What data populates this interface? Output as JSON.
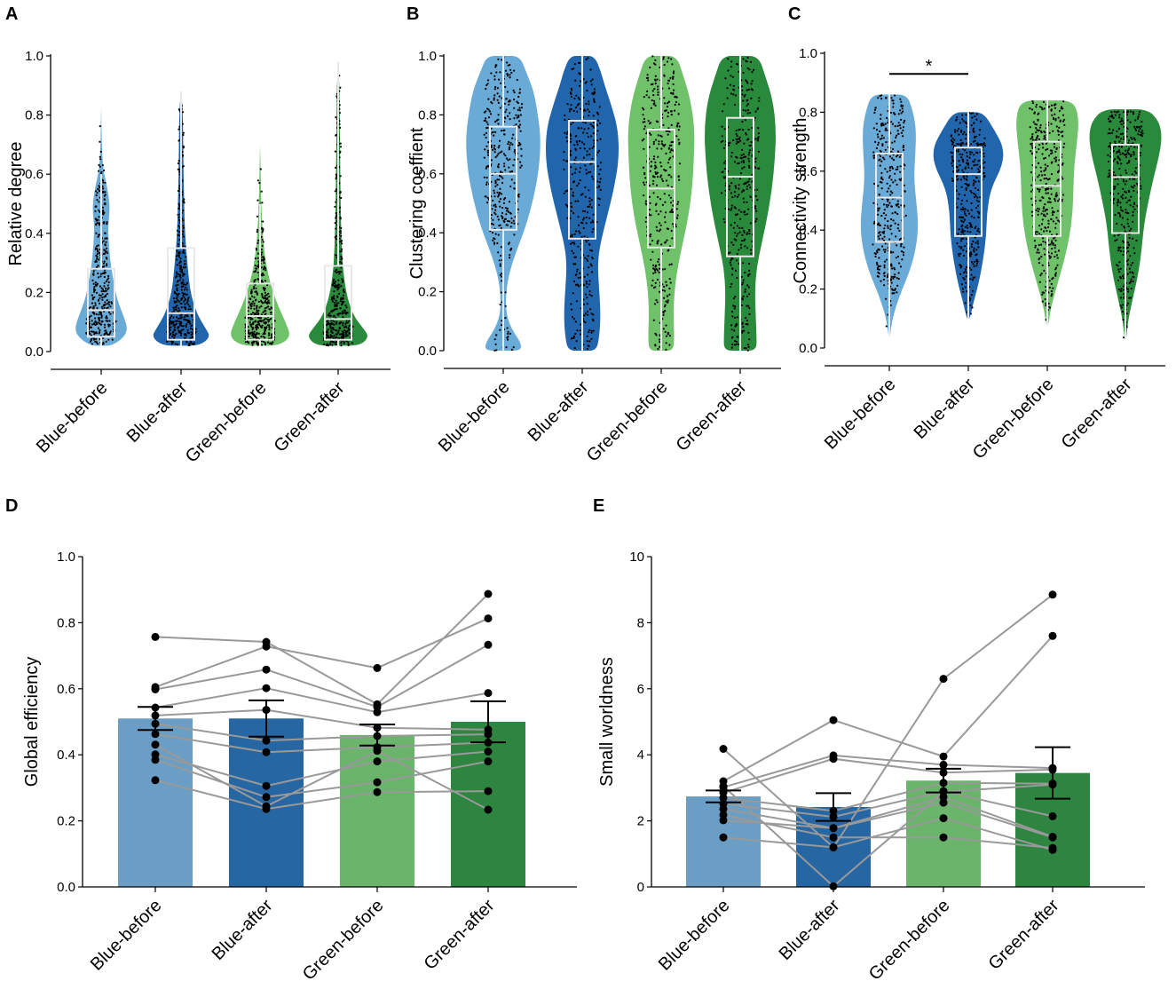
{
  "colors": {
    "Blue-before": "#6aaad6",
    "Blue-after": "#2166ac",
    "Green-before": "#6fc26a",
    "Green-after": "#2a8a3c",
    "bar_Blue-before": "#6a9ec4",
    "bar_Blue-after": "#2666a2",
    "bar_Green-before": "#6ab46c",
    "bar_Green-after": "#2e8540",
    "pair_line": "#999999",
    "point": "#000000"
  },
  "chart_data": [
    {
      "panel": "A",
      "type": "violin",
      "ylabel": "Relative degree",
      "ylim": [
        0,
        1.0
      ],
      "yticks": [
        "0.0",
        "0.2",
        "0.4",
        "0.6",
        "0.8",
        "1.0"
      ],
      "categories": [
        "Blue-before",
        "Blue-after",
        "Green-before",
        "Green-after"
      ],
      "groups": [
        {
          "name": "Blue-before",
          "min": 0.02,
          "max": 0.83,
          "q1": 0.05,
          "median": 0.14,
          "q3": 0.28,
          "whisker_low": 0.02,
          "whisker_high": 0.6,
          "density": [
            [
              0.02,
              0.35
            ],
            [
              0.05,
              0.75
            ],
            [
              0.08,
              0.85
            ],
            [
              0.12,
              0.72
            ],
            [
              0.18,
              0.5
            ],
            [
              0.25,
              0.38
            ],
            [
              0.3,
              0.3
            ],
            [
              0.36,
              0.25
            ],
            [
              0.42,
              0.22
            ],
            [
              0.48,
              0.28
            ],
            [
              0.53,
              0.24
            ],
            [
              0.58,
              0.14
            ],
            [
              0.62,
              0.06
            ],
            [
              0.7,
              0.02
            ],
            [
              0.83,
              0.0
            ]
          ]
        },
        {
          "name": "Blue-after",
          "min": 0.02,
          "max": 0.88,
          "q1": 0.04,
          "median": 0.13,
          "q3": 0.35,
          "whisker_low": 0.02,
          "whisker_high": 0.88,
          "density": [
            [
              0.02,
              0.6
            ],
            [
              0.05,
              0.95
            ],
            [
              0.08,
              0.78
            ],
            [
              0.13,
              0.5
            ],
            [
              0.2,
              0.3
            ],
            [
              0.28,
              0.22
            ],
            [
              0.35,
              0.16
            ],
            [
              0.42,
              0.12
            ],
            [
              0.5,
              0.1
            ],
            [
              0.6,
              0.08
            ],
            [
              0.7,
              0.07
            ],
            [
              0.78,
              0.06
            ],
            [
              0.84,
              0.04
            ],
            [
              0.88,
              0.0
            ]
          ]
        },
        {
          "name": "Green-before",
          "min": 0.02,
          "max": 0.7,
          "q1": 0.04,
          "median": 0.12,
          "q3": 0.23,
          "whisker_low": 0.02,
          "whisker_high": 0.5,
          "density": [
            [
              0.02,
              0.6
            ],
            [
              0.05,
              1.0
            ],
            [
              0.1,
              0.82
            ],
            [
              0.15,
              0.6
            ],
            [
              0.2,
              0.42
            ],
            [
              0.26,
              0.26
            ],
            [
              0.32,
              0.16
            ],
            [
              0.38,
              0.1
            ],
            [
              0.45,
              0.06
            ],
            [
              0.5,
              0.04
            ],
            [
              0.6,
              0.02
            ],
            [
              0.7,
              0.0
            ]
          ]
        },
        {
          "name": "Green-after",
          "min": 0.02,
          "max": 0.98,
          "q1": 0.04,
          "median": 0.11,
          "q3": 0.29,
          "whisker_low": 0.02,
          "whisker_high": 0.98,
          "density": [
            [
              0.02,
              0.7
            ],
            [
              0.05,
              1.0
            ],
            [
              0.08,
              0.8
            ],
            [
              0.12,
              0.5
            ],
            [
              0.18,
              0.3
            ],
            [
              0.24,
              0.2
            ],
            [
              0.3,
              0.14
            ],
            [
              0.4,
              0.1
            ],
            [
              0.5,
              0.08
            ],
            [
              0.6,
              0.07
            ],
            [
              0.7,
              0.06
            ],
            [
              0.8,
              0.05
            ],
            [
              0.9,
              0.04
            ],
            [
              0.98,
              0.0
            ]
          ]
        }
      ]
    },
    {
      "panel": "B",
      "type": "violin",
      "ylabel": "Clustering coeffient",
      "ylim": [
        0,
        1.0
      ],
      "yticks": [
        "0.0",
        "0.2",
        "0.4",
        "0.6",
        "0.8",
        "1.0"
      ],
      "categories": [
        "Blue-before",
        "Blue-after",
        "Green-before",
        "Green-after"
      ],
      "groups": [
        {
          "name": "Blue-before",
          "min": 0.0,
          "max": 1.0,
          "q1": 0.41,
          "median": 0.6,
          "q3": 0.76,
          "whisker_low": 0.0,
          "whisker_high": 1.0,
          "density": [
            [
              0.0,
              0.45
            ],
            [
              0.03,
              0.42
            ],
            [
              0.07,
              0.22
            ],
            [
              0.12,
              0.08
            ],
            [
              0.18,
              0.06
            ],
            [
              0.25,
              0.12
            ],
            [
              0.33,
              0.3
            ],
            [
              0.42,
              0.55
            ],
            [
              0.52,
              0.75
            ],
            [
              0.62,
              0.88
            ],
            [
              0.72,
              0.92
            ],
            [
              0.8,
              0.85
            ],
            [
              0.88,
              0.75
            ],
            [
              0.95,
              0.55
            ],
            [
              1.0,
              0.4
            ]
          ]
        },
        {
          "name": "Blue-after",
          "min": 0.0,
          "max": 1.0,
          "q1": 0.38,
          "median": 0.64,
          "q3": 0.78,
          "whisker_low": 0.0,
          "whisker_high": 1.0,
          "density": [
            [
              0.0,
              0.35
            ],
            [
              0.05,
              0.42
            ],
            [
              0.12,
              0.45
            ],
            [
              0.2,
              0.42
            ],
            [
              0.28,
              0.38
            ],
            [
              0.35,
              0.42
            ],
            [
              0.45,
              0.6
            ],
            [
              0.55,
              0.78
            ],
            [
              0.65,
              0.9
            ],
            [
              0.75,
              0.88
            ],
            [
              0.83,
              0.72
            ],
            [
              0.9,
              0.55
            ],
            [
              0.95,
              0.45
            ],
            [
              1.0,
              0.3
            ]
          ]
        },
        {
          "name": "Green-before",
          "min": 0.0,
          "max": 1.0,
          "q1": 0.35,
          "median": 0.55,
          "q3": 0.75,
          "whisker_low": 0.0,
          "whisker_high": 1.0,
          "density": [
            [
              0.0,
              0.3
            ],
            [
              0.05,
              0.32
            ],
            [
              0.12,
              0.3
            ],
            [
              0.2,
              0.32
            ],
            [
              0.28,
              0.4
            ],
            [
              0.36,
              0.52
            ],
            [
              0.45,
              0.66
            ],
            [
              0.55,
              0.76
            ],
            [
              0.65,
              0.8
            ],
            [
              0.75,
              0.82
            ],
            [
              0.85,
              0.72
            ],
            [
              0.93,
              0.55
            ],
            [
              1.0,
              0.38
            ]
          ]
        },
        {
          "name": "Green-after",
          "min": 0.0,
          "max": 1.0,
          "q1": 0.32,
          "median": 0.59,
          "q3": 0.79,
          "whisker_low": 0.0,
          "whisker_high": 1.0,
          "density": [
            [
              0.0,
              0.4
            ],
            [
              0.05,
              0.4
            ],
            [
              0.12,
              0.38
            ],
            [
              0.2,
              0.36
            ],
            [
              0.28,
              0.4
            ],
            [
              0.36,
              0.52
            ],
            [
              0.45,
              0.66
            ],
            [
              0.55,
              0.78
            ],
            [
              0.65,
              0.85
            ],
            [
              0.75,
              0.88
            ],
            [
              0.85,
              0.8
            ],
            [
              0.93,
              0.62
            ],
            [
              1.0,
              0.45
            ]
          ]
        }
      ]
    },
    {
      "panel": "C",
      "type": "violin",
      "ylabel": "Connectivity strength",
      "ylim": [
        0,
        1.0
      ],
      "yticks": [
        "0.0",
        "0.2",
        "0.4",
        "0.6",
        "0.8",
        "1.0"
      ],
      "categories": [
        "Blue-before",
        "Blue-after",
        "Green-before",
        "Green-after"
      ],
      "significance": {
        "from": "Blue-before",
        "to": "Blue-after",
        "y": 0.93,
        "label": "*"
      },
      "groups": [
        {
          "name": "Blue-before",
          "min": 0.04,
          "max": 0.86,
          "q1": 0.36,
          "median": 0.51,
          "q3": 0.66,
          "whisker_low": 0.04,
          "whisker_high": 0.86,
          "density": [
            [
              0.04,
              0.02
            ],
            [
              0.1,
              0.08
            ],
            [
              0.18,
              0.28
            ],
            [
              0.26,
              0.55
            ],
            [
              0.34,
              0.72
            ],
            [
              0.42,
              0.78
            ],
            [
              0.5,
              0.72
            ],
            [
              0.58,
              0.66
            ],
            [
              0.66,
              0.7
            ],
            [
              0.74,
              0.72
            ],
            [
              0.8,
              0.64
            ],
            [
              0.86,
              0.48
            ]
          ]
        },
        {
          "name": "Blue-after",
          "min": 0.1,
          "max": 0.8,
          "q1": 0.38,
          "median": 0.59,
          "q3": 0.68,
          "whisker_low": 0.1,
          "whisker_high": 0.8,
          "density": [
            [
              0.1,
              0.04
            ],
            [
              0.16,
              0.15
            ],
            [
              0.22,
              0.28
            ],
            [
              0.3,
              0.4
            ],
            [
              0.38,
              0.48
            ],
            [
              0.46,
              0.5
            ],
            [
              0.54,
              0.6
            ],
            [
              0.62,
              0.92
            ],
            [
              0.68,
              0.95
            ],
            [
              0.74,
              0.7
            ],
            [
              0.8,
              0.4
            ]
          ]
        },
        {
          "name": "Green-before",
          "min": 0.08,
          "max": 0.84,
          "q1": 0.38,
          "median": 0.55,
          "q3": 0.7,
          "whisker_low": 0.08,
          "whisker_high": 0.84,
          "density": [
            [
              0.08,
              0.03
            ],
            [
              0.14,
              0.1
            ],
            [
              0.22,
              0.28
            ],
            [
              0.3,
              0.46
            ],
            [
              0.38,
              0.6
            ],
            [
              0.46,
              0.68
            ],
            [
              0.54,
              0.7
            ],
            [
              0.62,
              0.72
            ],
            [
              0.7,
              0.8
            ],
            [
              0.78,
              0.85
            ],
            [
              0.84,
              0.7
            ]
          ]
        },
        {
          "name": "Green-after",
          "min": 0.03,
          "max": 0.81,
          "q1": 0.39,
          "median": 0.58,
          "q3": 0.69,
          "whisker_low": 0.03,
          "whisker_high": 0.81,
          "density": [
            [
              0.03,
              0.02
            ],
            [
              0.1,
              0.08
            ],
            [
              0.18,
              0.22
            ],
            [
              0.26,
              0.36
            ],
            [
              0.34,
              0.44
            ],
            [
              0.42,
              0.5
            ],
            [
              0.5,
              0.62
            ],
            [
              0.58,
              0.76
            ],
            [
              0.66,
              0.92
            ],
            [
              0.72,
              0.98
            ],
            [
              0.77,
              0.9
            ],
            [
              0.81,
              0.6
            ]
          ]
        }
      ]
    },
    {
      "panel": "D",
      "type": "bar",
      "ylabel": "Global efficiency",
      "ylim": [
        0,
        1.0
      ],
      "yticks": [
        "0.0",
        "0.2",
        "0.4",
        "0.6",
        "0.8",
        "1.0"
      ],
      "categories": [
        "Blue-before",
        "Blue-after",
        "Green-before",
        "Green-after"
      ],
      "means": [
        0.51,
        0.51,
        0.46,
        0.5
      ],
      "sem": [
        0.035,
        0.055,
        0.032,
        0.062
      ],
      "subjects": [
        [
          0.757,
          0.742,
          0.553,
          0.887
        ],
        [
          0.605,
          0.728,
          0.663,
          0.813
        ],
        [
          0.598,
          0.658,
          0.545,
          0.733
        ],
        [
          0.543,
          0.602,
          0.529,
          0.587
        ],
        [
          0.519,
          0.536,
          0.482,
          0.476
        ],
        [
          0.494,
          0.443,
          0.457,
          0.462
        ],
        [
          0.463,
          0.408,
          0.423,
          0.437
        ],
        [
          0.401,
          0.306,
          0.38,
          0.41
        ],
        [
          0.385,
          0.272,
          0.317,
          0.38
        ],
        [
          0.323,
          0.236,
          0.287,
          0.29
        ],
        [
          0.431,
          0.244,
          0.412,
          0.234
        ]
      ]
    },
    {
      "panel": "E",
      "type": "bar",
      "ylabel": "Small worldness",
      "ylim": [
        0,
        10
      ],
      "yticks": [
        "0",
        "2",
        "4",
        "6",
        "8",
        "10"
      ],
      "categories": [
        "Blue-before",
        "Blue-after",
        "Green-before",
        "Green-after"
      ],
      "means": [
        2.74,
        2.42,
        3.22,
        3.45
      ],
      "sem": [
        0.18,
        0.42,
        0.36,
        0.78
      ],
      "subjects": [
        [
          4.18,
          1.2,
          6.3,
          8.85
        ],
        [
          3.2,
          5.05,
          3.95,
          7.6
        ],
        [
          3.02,
          3.98,
          3.7,
          3.6
        ],
        [
          2.85,
          3.88,
          3.46,
          3.55
        ],
        [
          2.7,
          2.3,
          3.15,
          3.13
        ],
        [
          2.52,
          2.12,
          2.9,
          2.14
        ],
        [
          2.36,
          1.78,
          2.55,
          1.5
        ],
        [
          2.18,
          1.5,
          1.5,
          1.18
        ],
        [
          1.5,
          1.2,
          2.08,
          1.12
        ],
        [
          3.05,
          0.02,
          2.88,
          3.1
        ],
        [
          2.02,
          1.78,
          2.72,
          1.52
        ]
      ]
    }
  ]
}
